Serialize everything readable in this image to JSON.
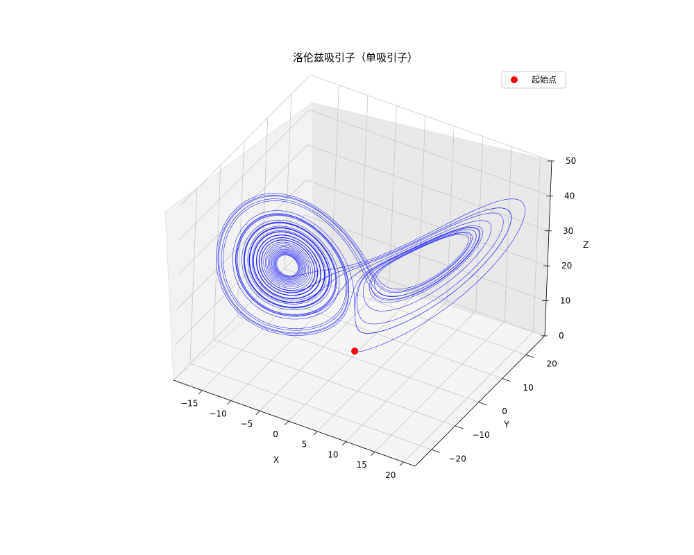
{
  "chart_data": {
    "type": "line3d",
    "title": "洛伦兹吸引子（单吸引子）",
    "xlabel": "X",
    "ylabel": "Y",
    "zlabel": "Z",
    "xlim": [
      -20,
      22
    ],
    "ylim": [
      -27,
      28
    ],
    "zlim": [
      0,
      50
    ],
    "xticks": [
      -15,
      -10,
      -5,
      0,
      5,
      10,
      15,
      20
    ],
    "yticks": [
      -20,
      -10,
      0,
      10,
      20
    ],
    "zticks": [
      0,
      10,
      20,
      30,
      40,
      50
    ],
    "grid": true,
    "legend": {
      "placement": "top-right",
      "entries": [
        "起始点"
      ]
    },
    "series": [
      {
        "kind": "trajectory",
        "color": "#0000ff",
        "system": "lorenz",
        "params": {
          "sigma": 10,
          "rho": 28,
          "beta": 2.6667
        },
        "start": [
          0,
          1,
          1.05
        ]
      },
      {
        "name": "起始点",
        "kind": "point",
        "color": "#ff0000",
        "point": [
          0,
          1,
          1.05
        ]
      }
    ]
  }
}
